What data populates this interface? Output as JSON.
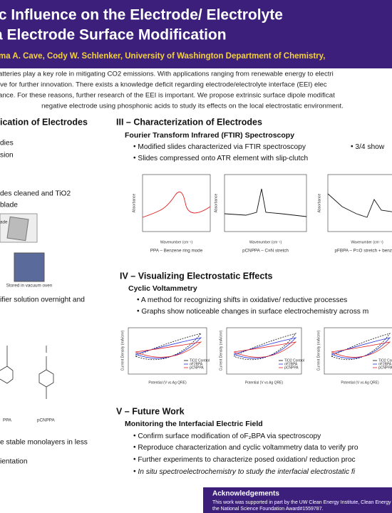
{
  "header": {
    "title_line1": "ic Influence on the Electrode/ Electrolyte",
    "title_line2": "a Electrode Surface Modification",
    "authors": "ma A. Cave, Cody W. Schlenker, University of Washington Department of Chemistry,"
  },
  "abstract": [
    "atteries play a key role in mitigating CO2 emissions. With applications ranging from renewable energy to electri",
    "ive for further innovation. There exists a knowledge deficit regarding electrode/electrolyte interface (EEI) elec",
    "ance. For these reasons, further research of the EEI is important. We propose extrinsic surface dipole modificat",
    "negative electrode using phosphonic acids to study its effects on the local electrostatic environment."
  ],
  "left": {
    "heading": "ication of Electrodes",
    "lines": [
      "dies",
      "sion",
      "des cleaned and TiO2",
      "blade"
    ],
    "img_label1": "ade",
    "img_label2": "Stored in vacuum oven",
    "line_after": "ifier solution overnight and",
    "mol1": "PPA",
    "mol2": "pCNPPA",
    "lines_bottom": [
      "e stable monolayers in less",
      "ientation"
    ]
  },
  "section3": {
    "heading": "III – Characterization of Electrodes",
    "subheading": "Fourier Transform Infrared (FTIR) Spectroscopy",
    "bullets": [
      "Modified slides characterized via FTIR spectroscopy",
      "Slides compressed onto ATR element with slip-clutch"
    ],
    "side_bullet": "3/4 show",
    "y_label": "Absorbance",
    "x_label": "Wavenumber (cm⁻¹)",
    "captions": [
      "PPA – Benzene ring mode",
      "pCNPPA – C≡N stretch",
      "pFBPA – P=O stretch + benzene"
    ]
  },
  "section4": {
    "heading": "IV – Visualizing Electrostatic Effects",
    "subheading": "Cyclic Voltammetry",
    "bullets": [
      "A method for recognizing shifts in oxidative/ reductive processes",
      "Graphs show noticeable changes in surface electrochemistry across m"
    ],
    "y_label": "Current Density (mA/cm²)",
    "x_label": "Potential (V vs Ag QRE)",
    "legend": [
      "TiO2 Control",
      "oF2BPA",
      "pCNPPA"
    ]
  },
  "section5": {
    "heading": "V – Future Work",
    "subheading": "Monitoring the Interfacial Electric Field",
    "bullets": [
      "Confirm surface modification of oF₂BPA via spectroscopy",
      "Reproduce characterization and cyclic voltammetry data to verify pro",
      "Further experiments to characterize posed oxidation/ reduction proc",
      "In situ spectroelectrochemistry to study the interfacial electrostatic fi"
    ]
  },
  "footer": {
    "heading": "Acknowledgements",
    "text_line1": "This work was supported in part by the UW Clean Energy Institute, Clean Energy",
    "text_line2": "the National Science Foundation Award#1559787."
  }
}
